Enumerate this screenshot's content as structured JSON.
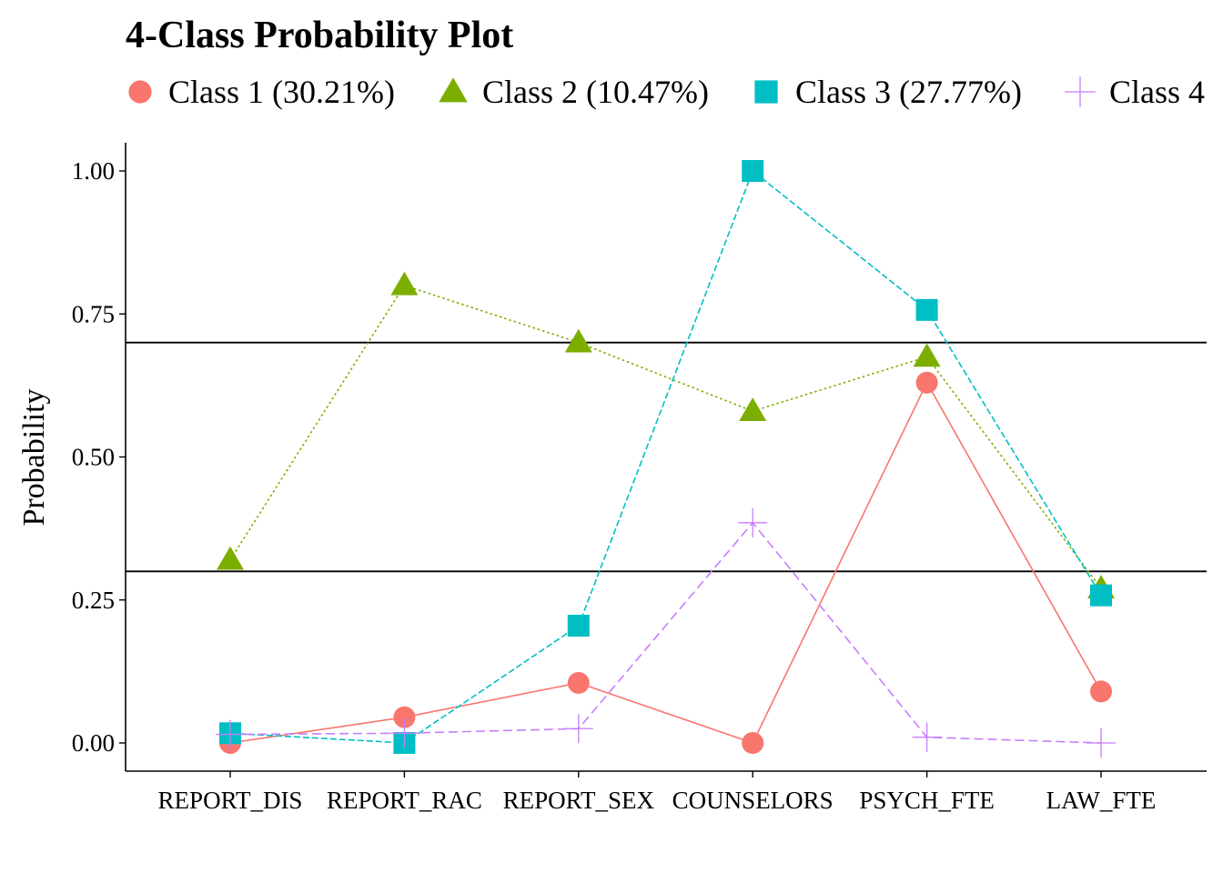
{
  "chart_data": {
    "type": "line",
    "title": "4-Class Probability Plot",
    "xlabel": "",
    "ylabel": "Probability",
    "categories": [
      "REPORT_DIS",
      "REPORT_RAC",
      "REPORT_SEX",
      "COUNSELORS",
      "PSYCH_FTE",
      "LAW_FTE"
    ],
    "ylim": [
      -0.05,
      1.05
    ],
    "yticks": [
      0.0,
      0.25,
      0.5,
      0.75,
      1.0
    ],
    "ytick_labels": [
      "0.00",
      "0.25",
      "0.50",
      "0.75",
      "1.00"
    ],
    "reference_lines": [
      0.3,
      0.7
    ],
    "grid": false,
    "legend_position": "top",
    "series": [
      {
        "name": "Class 1 (30.21%)",
        "color": "#F8766D",
        "marker": "circle",
        "line": "solid",
        "values": [
          0.0,
          0.045,
          0.105,
          0.0,
          0.63,
          0.09
        ]
      },
      {
        "name": "Class 2 (10.47%)",
        "color": "#7CAE00",
        "marker": "triangle",
        "line": "dotted",
        "values": [
          0.32,
          0.8,
          0.7,
          0.58,
          0.675,
          0.27
        ]
      },
      {
        "name": "Class 3 (27.77%)",
        "color": "#00BFC4",
        "marker": "square",
        "line": "dashed",
        "values": [
          0.017,
          0.0,
          0.205,
          1.0,
          0.757,
          0.258
        ]
      },
      {
        "name": "Class 4",
        "color": "#C77CFF",
        "marker": "plus",
        "line": "longdash",
        "values": [
          0.015,
          0.017,
          0.025,
          0.385,
          0.01,
          0.0
        ]
      }
    ]
  }
}
